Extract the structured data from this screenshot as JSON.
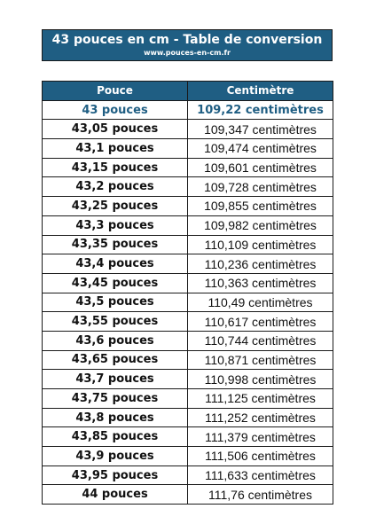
{
  "header": {
    "title": "43 pouces en cm - Table de conversion",
    "url": "www.pouces-en-cm.fr"
  },
  "table": {
    "columns": [
      "Pouce",
      "Centimètre"
    ],
    "rows": [
      [
        "43 pouces",
        "109,22 centimètres"
      ],
      [
        "43,05 pouces",
        "109,347 centimètres"
      ],
      [
        "43,1 pouces",
        "109,474 centimètres"
      ],
      [
        "43,15 pouces",
        "109,601 centimètres"
      ],
      [
        "43,2 pouces",
        "109,728 centimètres"
      ],
      [
        "43,25 pouces",
        "109,855 centimètres"
      ],
      [
        "43,3 pouces",
        "109,982 centimètres"
      ],
      [
        "43,35 pouces",
        "110,109 centimètres"
      ],
      [
        "43,4 pouces",
        "110,236 centimètres"
      ],
      [
        "43,45 pouces",
        "110,363 centimètres"
      ],
      [
        "43,5 pouces",
        "110,49 centimètres"
      ],
      [
        "43,55 pouces",
        "110,617 centimètres"
      ],
      [
        "43,6 pouces",
        "110,744 centimètres"
      ],
      [
        "43,65 pouces",
        "110,871 centimètres"
      ],
      [
        "43,7 pouces",
        "110,998 centimètres"
      ],
      [
        "43,75 pouces",
        "111,125 centimètres"
      ],
      [
        "43,8 pouces",
        "111,252 centimètres"
      ],
      [
        "43,85 pouces",
        "111,379 centimètres"
      ],
      [
        "43,9 pouces",
        "111,506 centimètres"
      ],
      [
        "43,95 pouces",
        "111,633 centimètres"
      ],
      [
        "44 pouces",
        "111,76 centimètres"
      ]
    ]
  },
  "colors": {
    "header_bg": "#1f5e83",
    "header_text": "#ffffff",
    "highlight_text": "#1f5e83",
    "border": "#1a1a1a"
  }
}
